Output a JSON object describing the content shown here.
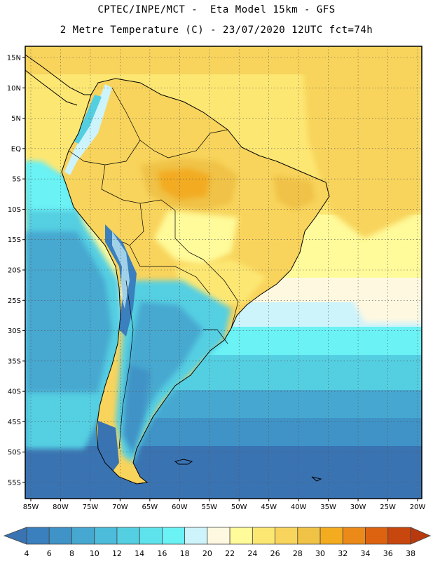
{
  "header": {
    "line1": "CPTEC/INPE/MCT -  Eta Model 15km - GFS",
    "line2": "2 Metre Temperature (C) - 23/07/2020 12UTC fct=74h"
  },
  "map": {
    "lat_labels": [
      "15N",
      "10N",
      "5N",
      "EQ",
      "5S",
      "10S",
      "15S",
      "20S",
      "25S",
      "30S",
      "35S",
      "40S",
      "45S",
      "50S",
      "55S"
    ],
    "lon_labels": [
      "85W",
      "80W",
      "75W",
      "70W",
      "65W",
      "60W",
      "55W",
      "50W",
      "45W",
      "40W",
      "35W",
      "30W",
      "25W",
      "20W"
    ],
    "extent": {
      "lon": [
        -86,
        -20
      ],
      "lat": [
        16,
        -58
      ]
    },
    "grid": "dotted"
  },
  "colorbar": {
    "labels": [
      "4",
      "6",
      "8",
      "10",
      "12",
      "14",
      "16",
      "18",
      "20",
      "22",
      "24",
      "26",
      "28",
      "30",
      "32",
      "34",
      "36",
      "38"
    ],
    "colors": [
      "#3a73b2",
      "#3a7fbe",
      "#3f93c6",
      "#46a8d0",
      "#4dbcdb",
      "#54cfe2",
      "#5ee3ec",
      "#6af2f5",
      "#cdf3fb",
      "#fff8e1",
      "#fffa9a",
      "#fde773",
      "#f8d45c",
      "#f0c246",
      "#f3ab20",
      "#eb8a18",
      "#dd6311",
      "#c8470e",
      "#b8390d"
    ]
  }
}
